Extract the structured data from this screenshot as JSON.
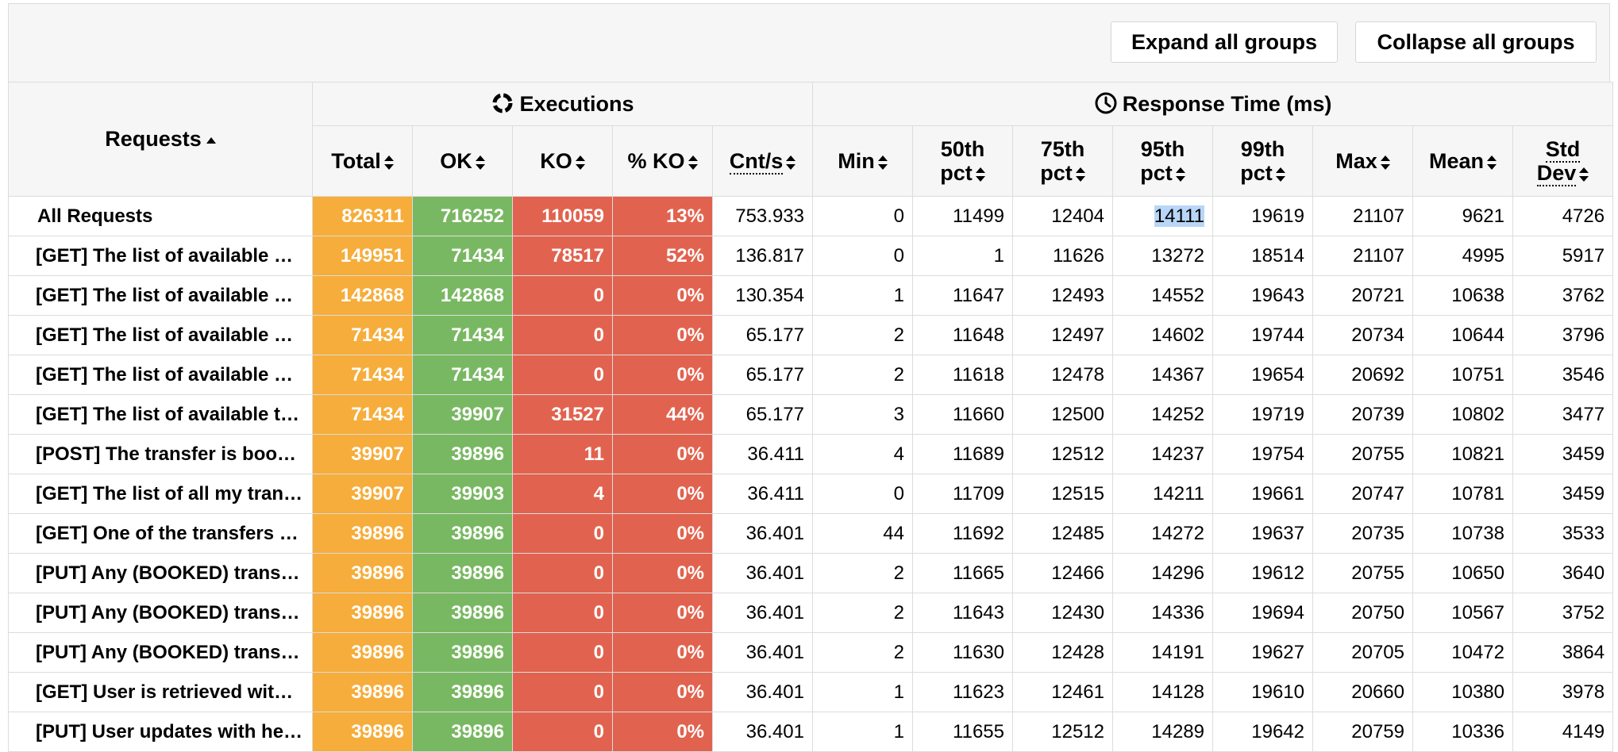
{
  "toolbar": {
    "expand_label": "Expand all groups",
    "collapse_label": "Collapse all groups"
  },
  "header": {
    "requests": "Requests",
    "executions": "Executions",
    "response_time": "Response Time (ms)",
    "cols": [
      "Total",
      "OK",
      "KO",
      "% KO",
      "Cnt/s",
      "Min",
      "50th",
      "pct",
      "75th",
      "pct",
      "95th",
      "pct",
      "99th",
      "pct",
      "Max",
      "Mean",
      "Std",
      "Dev"
    ]
  },
  "colors": {
    "total": "#f6ad3b",
    "ok": "#79b862",
    "ko": "#e1634f"
  },
  "icons": {
    "executions": "refresh-cycle-icon",
    "response_time": "clock-icon"
  },
  "highlighted_cell": "14111",
  "rows": [
    [
      "All Requests",
      "826311",
      "716252",
      "110059",
      "13%",
      "753.933",
      "0",
      "11499",
      "12404",
      "14111",
      "19619",
      "21107",
      "9621",
      "4726"
    ],
    [
      "[GET] The list of available …",
      "149951",
      "71434",
      "78517",
      "52%",
      "136.817",
      "0",
      "1",
      "11626",
      "13272",
      "18514",
      "21107",
      "4995",
      "5917"
    ],
    [
      "[GET] The list of available …",
      "142868",
      "142868",
      "0",
      "0%",
      "130.354",
      "1",
      "11647",
      "12493",
      "14552",
      "19643",
      "20721",
      "10638",
      "3762"
    ],
    [
      "[GET] The list of available …",
      "71434",
      "71434",
      "0",
      "0%",
      "65.177",
      "2",
      "11648",
      "12497",
      "14602",
      "19744",
      "20734",
      "10644",
      "3796"
    ],
    [
      "[GET] The list of available …",
      "71434",
      "71434",
      "0",
      "0%",
      "65.177",
      "2",
      "11618",
      "12478",
      "14367",
      "19654",
      "20692",
      "10751",
      "3546"
    ],
    [
      "[GET] The list of available t…",
      "71434",
      "39907",
      "31527",
      "44%",
      "65.177",
      "3",
      "11660",
      "12500",
      "14252",
      "19719",
      "20739",
      "10802",
      "3477"
    ],
    [
      "[POST] The transfer is boo…",
      "39907",
      "39896",
      "11",
      "0%",
      "36.411",
      "4",
      "11689",
      "12512",
      "14237",
      "19754",
      "20755",
      "10821",
      "3459"
    ],
    [
      "[GET] The list of all my tran…",
      "39907",
      "39903",
      "4",
      "0%",
      "36.411",
      "0",
      "11709",
      "12515",
      "14211",
      "19661",
      "20747",
      "10781",
      "3459"
    ],
    [
      "[GET] One of the transfers (…",
      "39896",
      "39896",
      "0",
      "0%",
      "36.401",
      "44",
      "11692",
      "12485",
      "14272",
      "19637",
      "20735",
      "10738",
      "3533"
    ],
    [
      "[PUT] Any (BOOKED) trans…",
      "39896",
      "39896",
      "0",
      "0%",
      "36.401",
      "2",
      "11665",
      "12466",
      "14296",
      "19612",
      "20755",
      "10650",
      "3640"
    ],
    [
      "[PUT] Any (BOOKED) trans…",
      "39896",
      "39896",
      "0",
      "0%",
      "36.401",
      "2",
      "11643",
      "12430",
      "14336",
      "19694",
      "20750",
      "10567",
      "3752"
    ],
    [
      "[PUT] Any (BOOKED) trans…",
      "39896",
      "39896",
      "0",
      "0%",
      "36.401",
      "2",
      "11630",
      "12428",
      "14191",
      "19627",
      "20705",
      "10472",
      "3864"
    ],
    [
      "[GET] User is retrieved wit…",
      "39896",
      "39896",
      "0",
      "0%",
      "36.401",
      "1",
      "11623",
      "12461",
      "14128",
      "19610",
      "20660",
      "10380",
      "3978"
    ],
    [
      "[PUT] User updates with he…",
      "39896",
      "39896",
      "0",
      "0%",
      "36.401",
      "1",
      "11655",
      "12512",
      "14289",
      "19642",
      "20759",
      "10336",
      "4149"
    ]
  ]
}
